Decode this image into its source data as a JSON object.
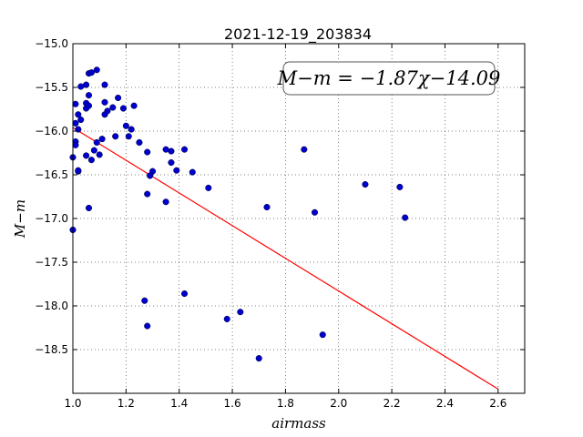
{
  "chart_data": {
    "type": "scatter",
    "title": "2021-12-19_203834",
    "xlabel": "airmass",
    "ylabel": "M−m",
    "xlim": [
      1.0,
      2.7
    ],
    "ylim": [
      -19.0,
      -15.0
    ],
    "y_inverted": true,
    "grid": true,
    "x_ticks": [
      1.0,
      1.2,
      1.4,
      1.6,
      1.8,
      2.0,
      2.2,
      2.4,
      2.6
    ],
    "x_tick_labels": [
      "1.0",
      "1.2",
      "1.4",
      "1.6",
      "1.8",
      "2.0",
      "2.2",
      "2.4",
      "2.6"
    ],
    "y_ticks": [
      -15.0,
      -15.5,
      -16.0,
      -16.5,
      -17.0,
      -17.5,
      -18.0,
      -18.5
    ],
    "y_tick_labels": [
      "−15.0",
      "−15.5",
      "−16.0",
      "−16.5",
      "−17.0",
      "−17.5",
      "−18.0",
      "−18.5"
    ],
    "annotation": "M−m = −1.87χ−14.09",
    "fit": {
      "slope": -1.87,
      "intercept": -14.09,
      "x_range": [
        1.0,
        2.6
      ],
      "color": "#ff0000"
    },
    "point_color": "#0000cc",
    "points": [
      [
        1.0,
        -17.13
      ],
      [
        1.0,
        -16.3
      ],
      [
        1.01,
        -16.12
      ],
      [
        1.01,
        -16.16
      ],
      [
        1.01,
        -15.91
      ],
      [
        1.01,
        -15.69
      ],
      [
        1.02,
        -16.46
      ],
      [
        1.02,
        -16.45
      ],
      [
        1.02,
        -15.98
      ],
      [
        1.02,
        -15.81
      ],
      [
        1.03,
        -15.87
      ],
      [
        1.03,
        -15.49
      ],
      [
        1.05,
        -15.47
      ],
      [
        1.05,
        -15.68
      ],
      [
        1.05,
        -15.74
      ],
      [
        1.05,
        -16.28
      ],
      [
        1.06,
        -15.71
      ],
      [
        1.06,
        -15.59
      ],
      [
        1.06,
        -15.34
      ],
      [
        1.06,
        -16.88
      ],
      [
        1.07,
        -16.33
      ],
      [
        1.07,
        -15.33
      ],
      [
        1.08,
        -16.22
      ],
      [
        1.09,
        -15.3
      ],
      [
        1.09,
        -16.13
      ],
      [
        1.1,
        -16.27
      ],
      [
        1.11,
        -16.09
      ],
      [
        1.12,
        -15.67
      ],
      [
        1.12,
        -15.47
      ],
      [
        1.12,
        -15.81
      ],
      [
        1.13,
        -15.77
      ],
      [
        1.15,
        -15.73
      ],
      [
        1.16,
        -16.06
      ],
      [
        1.17,
        -15.62
      ],
      [
        1.19,
        -15.74
      ],
      [
        1.2,
        -15.94
      ],
      [
        1.21,
        -16.06
      ],
      [
        1.22,
        -15.98
      ],
      [
        1.23,
        -15.71
      ],
      [
        1.25,
        -16.13
      ],
      [
        1.27,
        -17.94
      ],
      [
        1.28,
        -18.23
      ],
      [
        1.28,
        -16.24
      ],
      [
        1.28,
        -16.72
      ],
      [
        1.29,
        -16.51
      ],
      [
        1.3,
        -16.46
      ],
      [
        1.35,
        -16.21
      ],
      [
        1.35,
        -16.81
      ],
      [
        1.37,
        -16.36
      ],
      [
        1.37,
        -16.23
      ],
      [
        1.39,
        -16.45
      ],
      [
        1.42,
        -16.21
      ],
      [
        1.42,
        -17.86
      ],
      [
        1.45,
        -16.47
      ],
      [
        1.51,
        -16.65
      ],
      [
        1.58,
        -18.15
      ],
      [
        1.63,
        -18.07
      ],
      [
        1.7,
        -18.6
      ],
      [
        1.73,
        -16.87
      ],
      [
        1.87,
        -16.21
      ],
      [
        1.91,
        -16.93
      ],
      [
        1.94,
        -18.33
      ],
      [
        2.1,
        -16.61
      ],
      [
        2.23,
        -16.64
      ],
      [
        2.25,
        -16.99
      ]
    ]
  }
}
